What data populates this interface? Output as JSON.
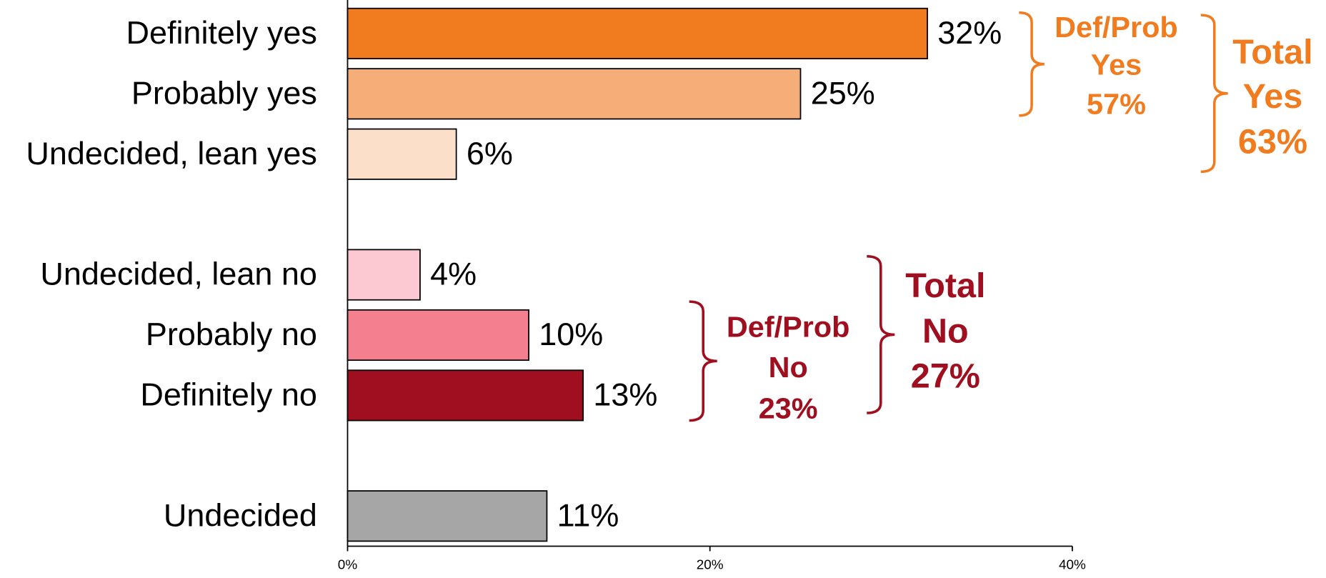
{
  "chart_data": {
    "type": "bar",
    "orientation": "horizontal",
    "categories": [
      "Definitely yes",
      "Probably yes",
      "Undecided, lean yes",
      null,
      "Undecided, lean no",
      "Probably no",
      "Definitely no",
      null,
      "Undecided"
    ],
    "values": [
      32,
      25,
      6,
      null,
      4,
      10,
      13,
      null,
      11
    ],
    "value_labels": [
      "32%",
      "25%",
      "6%",
      null,
      "4%",
      "10%",
      "13%",
      null,
      "11%"
    ],
    "colors": [
      "#f07c1f",
      "#f5ae78",
      "#fbdfc8",
      null,
      "#fcc8d2",
      "#f4808f",
      "#a00f1f",
      null,
      "#a6a6a6"
    ],
    "xlim": [
      0,
      40
    ],
    "xticks": [
      {
        "value": 0,
        "label": "0%"
      },
      {
        "value": 20,
        "label": "20%"
      },
      {
        "value": 40,
        "label": "40%"
      }
    ],
    "annotations": [
      {
        "lines": [
          "Def/Prob",
          "Yes",
          "57%"
        ],
        "color": "#f07c1f"
      },
      {
        "lines": [
          "Total",
          "Yes",
          "63%"
        ],
        "color": "#f07c1f"
      },
      {
        "lines": [
          "Def/Prob",
          "No",
          "23%"
        ],
        "color": "#a00f1f"
      },
      {
        "lines": [
          "Total",
          "No",
          "27%"
        ],
        "color": "#a00f1f"
      }
    ]
  }
}
